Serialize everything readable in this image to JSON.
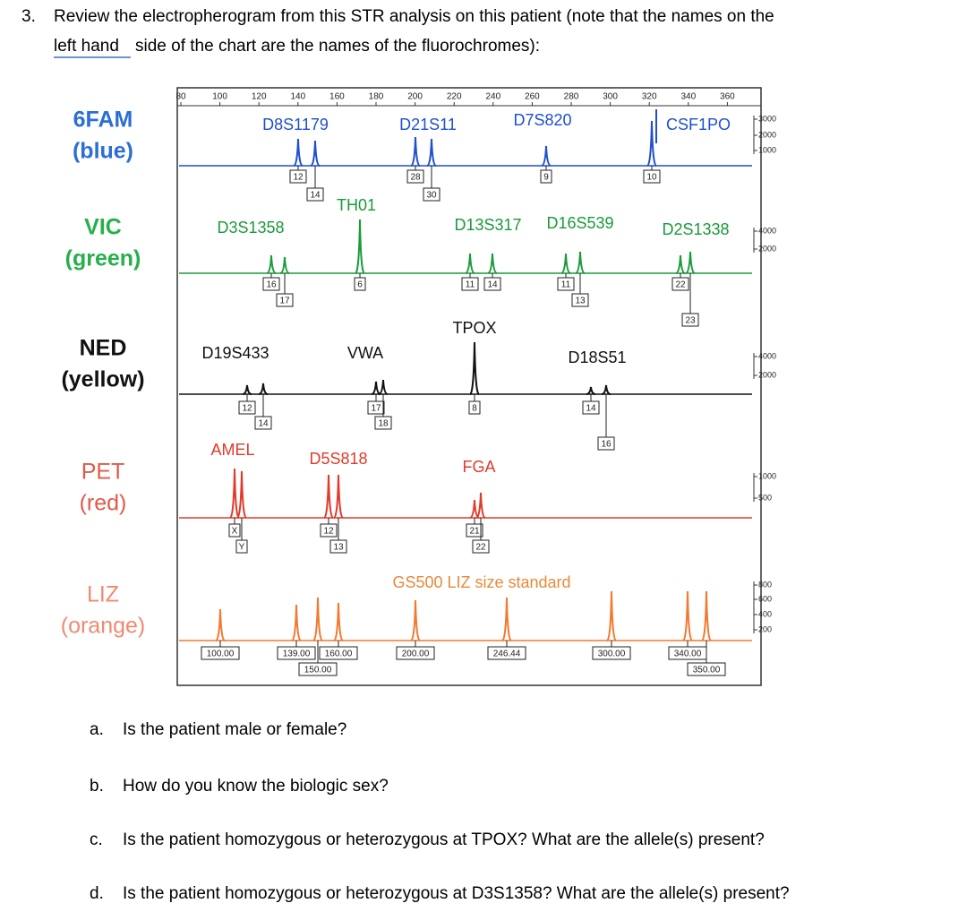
{
  "question": {
    "number": "3.",
    "line1": "Review the electropherogram from this STR analysis on this patient (note that the names on the",
    "link": "left hand",
    "line2": "side of the chart are the names of the fluorochromes):"
  },
  "figure": {
    "axis_ticks": [
      "80",
      "100",
      "120",
      "140",
      "160",
      "180",
      "200",
      "220",
      "240",
      "260",
      "280",
      "300",
      "320",
      "340",
      "360"
    ],
    "channels": [
      {
        "dye": "6FAM",
        "color_name": "(blue)",
        "loci": [
          "D8S1179",
          "D21S11",
          "D7S820",
          "CSF1PO"
        ],
        "alleles": [
          "12",
          "14",
          "28",
          "30",
          "9",
          "10"
        ],
        "scale": [
          "3000",
          "2000",
          "1000"
        ]
      },
      {
        "dye": "VIC",
        "color_name": "(green)",
        "loci": [
          "D3S1358",
          "TH01",
          "D13S317",
          "D16S539",
          "D2S1338"
        ],
        "alleles": [
          "16",
          "17",
          "6",
          "11",
          "14",
          "11",
          "13",
          "22",
          "23"
        ],
        "scale": [
          "4000",
          "2000"
        ]
      },
      {
        "dye": "NED",
        "color_name": "(yellow)",
        "loci": [
          "D19S433",
          "VWA",
          "TPOX",
          "D18S51"
        ],
        "alleles": [
          "12",
          "14",
          "17",
          "18",
          "8",
          "14",
          "16"
        ],
        "scale": [
          "4000",
          "2000"
        ]
      },
      {
        "dye": "PET",
        "color_name": "(red)",
        "loci": [
          "AMEL",
          "D5S818",
          "FGA"
        ],
        "alleles": [
          "X",
          "Y",
          "12",
          "13",
          "21",
          "22"
        ],
        "scale": [
          "1000",
          "500"
        ]
      },
      {
        "dye": "LIZ",
        "color_name": "(orange)",
        "loci": [
          "GS500 LIZ size standard"
        ],
        "alleles": [
          "100.00",
          "139.00",
          "150.00",
          "160.00",
          "200.00",
          "246.44",
          "300.00",
          "340.00",
          "350.00"
        ],
        "scale": [
          "800",
          "600",
          "400",
          "200"
        ]
      }
    ]
  },
  "questions": [
    {
      "letter": "a.",
      "text": "Is the patient male or female?"
    },
    {
      "letter": "b.",
      "text": "How do you know the biologic sex?"
    },
    {
      "letter": "c.",
      "text": "Is the patient homozygous or heterozygous at TPOX? What are the allele(s) present?"
    },
    {
      "letter": "d.",
      "text": "Is the patient homozygous or heterozygous at D3S1358? What are the allele(s) present?"
    }
  ]
}
